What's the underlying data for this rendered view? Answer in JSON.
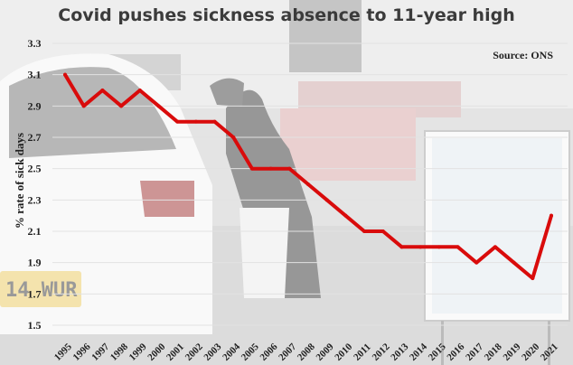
{
  "chart_data": {
    "type": "line",
    "title": "Covid pushes sickness absence to 11-year high",
    "source": "Source: ONS",
    "xlabel": "",
    "ylabel": "% rate of sick days",
    "ylim": [
      1.5,
      3.3
    ],
    "yticks": [
      1.5,
      1.7,
      1.9,
      2.1,
      2.3,
      2.5,
      2.7,
      2.9,
      3.1,
      3.3
    ],
    "grid": true,
    "legend": "none",
    "line_color": "#d90b0b",
    "x": [
      "1995",
      "1996",
      "1997",
      "1998",
      "1999",
      "2000",
      "2001",
      "2002",
      "2003",
      "2004",
      "2005",
      "2006",
      "2007",
      "2008",
      "2009",
      "2010",
      "2011",
      "2012",
      "2013",
      "2014",
      "2015",
      "2016",
      "2017",
      "2018",
      "2019",
      "2020",
      "2021"
    ],
    "series": [
      {
        "values": [
          3.1,
          2.9,
          3.0,
          2.9,
          3.0,
          2.9,
          2.8,
          2.8,
          2.8,
          2.7,
          2.5,
          2.5,
          2.5,
          2.4,
          2.3,
          2.2,
          2.1,
          2.1,
          2.0,
          2.0,
          2.0,
          2.0,
          1.9,
          2.0,
          1.9,
          1.8,
          2.2
        ]
      }
    ]
  }
}
